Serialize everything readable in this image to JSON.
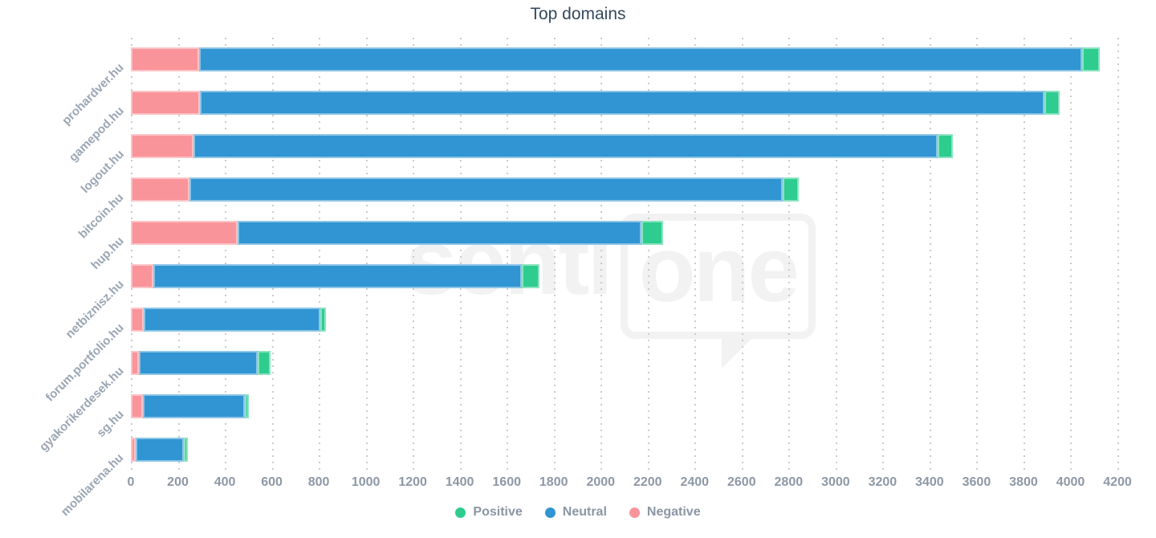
{
  "chart_data": {
    "type": "bar",
    "orientation": "horizontal",
    "stacked": true,
    "title": "Top domains",
    "categories": [
      "prohardver.hu",
      "gamepod.hu",
      "logout.hu",
      "bitcoin.hu",
      "hup.hu",
      "netbiznisz.hu",
      "forum.portfolio.hu",
      "gyakorikerdesek.hu",
      "sg.hu",
      "mobilarena.hu"
    ],
    "series": [
      {
        "name": "Negative",
        "color": "#f9949a",
        "values": [
          290,
          295,
          265,
          250,
          455,
          95,
          55,
          35,
          50,
          20
        ]
      },
      {
        "name": "Neutral",
        "color": "#3095d2",
        "values": [
          3760,
          3595,
          3170,
          2525,
          1720,
          1570,
          750,
          505,
          435,
          205
        ]
      },
      {
        "name": "Positive",
        "color": "#2ecc8f",
        "values": [
          75,
          65,
          65,
          70,
          90,
          75,
          25,
          55,
          15,
          8
        ]
      }
    ],
    "xlim": [
      0,
      4200
    ],
    "x_ticks": [
      0,
      200,
      400,
      600,
      800,
      1000,
      1200,
      1400,
      1600,
      1800,
      2000,
      2200,
      2400,
      2600,
      2800,
      3000,
      3200,
      3400,
      3600,
      3800,
      4000,
      4200
    ],
    "grid": "vertical-dotted",
    "legend_position": "bottom",
    "legend": [
      {
        "label": "Positive",
        "color": "#2ecc8f"
      },
      {
        "label": "Neutral",
        "color": "#3095d2"
      },
      {
        "label": "Negative",
        "color": "#f9949a"
      }
    ]
  },
  "watermark": {
    "text": "senti",
    "boxed_text": "one"
  },
  "colors": {
    "background": "#ffffff",
    "title_text": "#34495e",
    "axis_tick_text": "#8d98a6",
    "category_text": "#9aa6b3",
    "legend_text": "#8a96a4",
    "grid_dot": "#cbcbcb",
    "watermark": "#f2f2f2"
  }
}
